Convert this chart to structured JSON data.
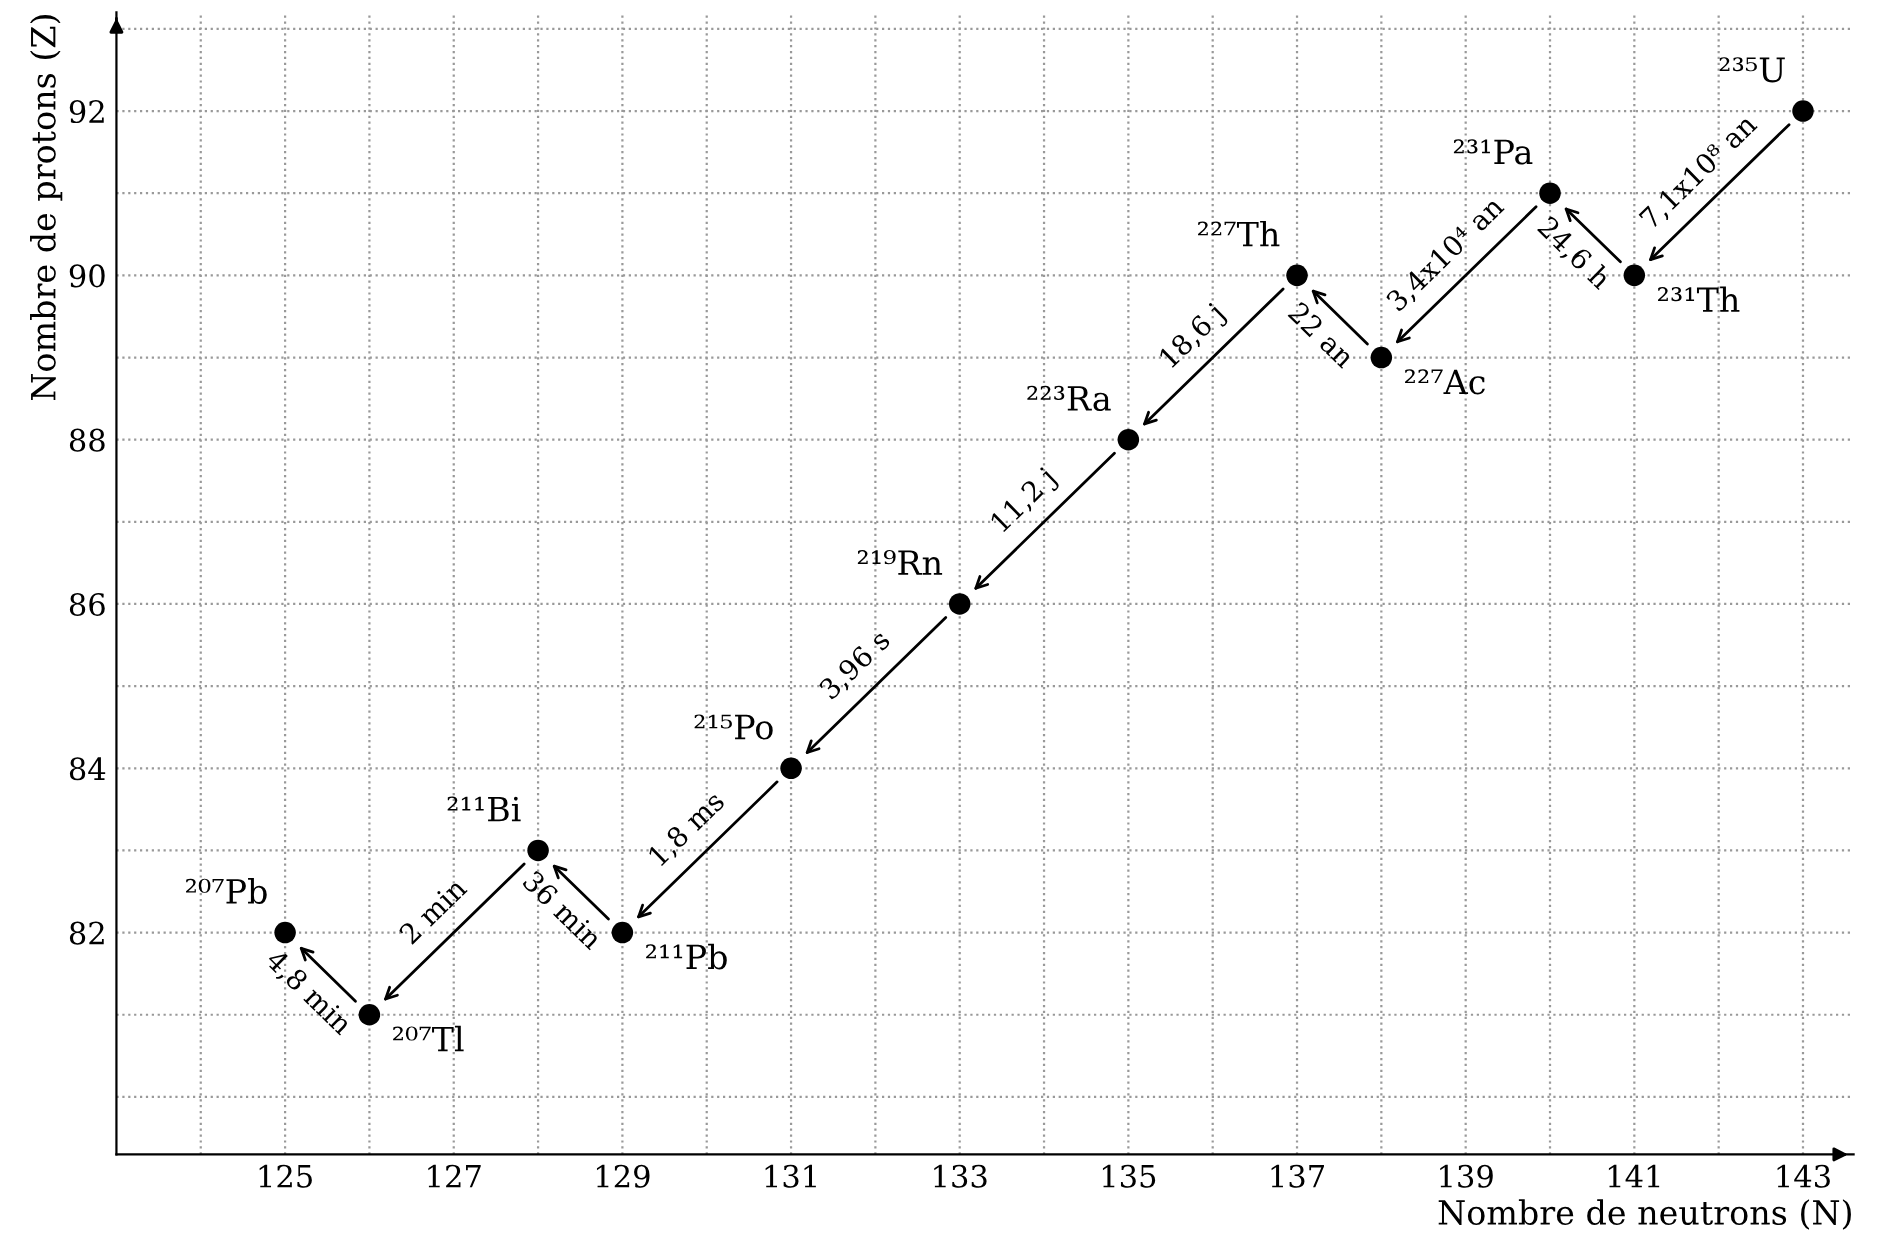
{
  "chart_data": {
    "type": "scatter",
    "xlabel": "Nombre de neutrons (N)",
    "ylabel": "Nombre de protons (Z)",
    "x": [
      143,
      141,
      140,
      138,
      137,
      135,
      133,
      131,
      129,
      128,
      126,
      125
    ],
    "series": [
      {
        "color": "#000000",
        "values": [
          92,
          90,
          91,
          89,
          90,
          88,
          86,
          84,
          82,
          83,
          81,
          82
        ],
        "value_labels": [
          "²³⁵U",
          "²³¹Th",
          "²³¹Pa",
          "²²⁷Ac",
          "²²⁷Th",
          "²²³Ra",
          "²¹⁹Rn",
          "²¹⁵Po",
          "²¹¹Pb",
          "²¹¹Bi",
          "²⁰⁷Tl",
          "²⁰⁷Pb"
        ]
      }
    ],
    "annotations": [
      "7,1x10⁸ an",
      "24,6 h",
      "3,4x10⁴ an",
      "22 an",
      "18,6 j",
      "11,2 j",
      "3,96 s",
      "1,8 ms",
      "36 min",
      "2 min",
      "4,8 min"
    ],
    "xlim": [
      123,
      143.6
    ],
    "ylim": [
      79.3,
      93.2
    ],
    "xticks": [
      {
        "value": 124,
        "label": null
      },
      125,
      {
        "value": 126,
        "label": null
      },
      127,
      {
        "value": 128,
        "label": null
      },
      129,
      {
        "value": 130,
        "label": null
      },
      131,
      {
        "value": 132,
        "label": null
      },
      133,
      {
        "value": 134,
        "label": null
      },
      135,
      {
        "value": 136,
        "label": null
      },
      137,
      {
        "value": 138,
        "label": null
      },
      139,
      {
        "value": 140,
        "label": null
      },
      141,
      {
        "value": 142,
        "label": null
      },
      143
    ],
    "yticks": [
      {
        "value": 80,
        "label": null
      },
      {
        "value": 81,
        "label": null
      },
      82,
      {
        "value": 83,
        "label": null
      },
      84,
      {
        "value": 85,
        "label": null
      },
      86,
      {
        "value": 87,
        "label": null
      },
      88,
      {
        "value": 89,
        "label": null
      },
      90,
      {
        "value": 91,
        "label": null
      },
      92,
      {
        "value": 93,
        "label": null
      }
    ],
    "grid": true,
    "marker": "circle"
  }
}
